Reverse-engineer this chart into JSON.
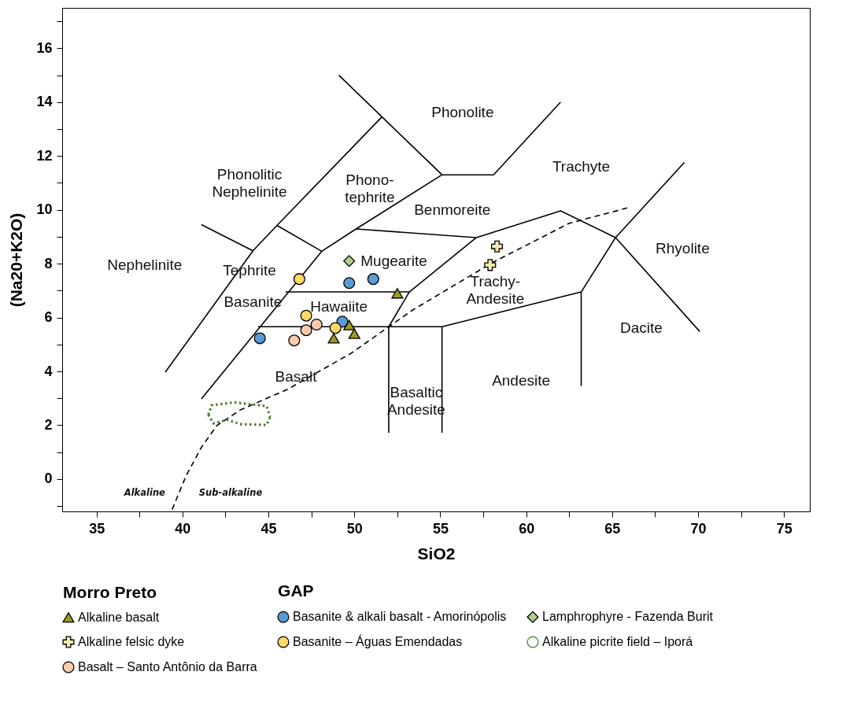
{
  "chart_data": {
    "type": "scatter",
    "xlabel": "SiO2",
    "ylabel": "(Na20+K2O)",
    "xlim": [
      33,
      76.5
    ],
    "ylim": [
      -1.2,
      17.5
    ],
    "xticks": [
      35,
      {
        "value": 37.5,
        "label": null
      },
      40,
      {
        "value": 42.5,
        "label": null
      },
      45,
      {
        "value": 47.5,
        "label": null
      },
      50,
      {
        "value": 52.5,
        "label": null
      },
      55,
      {
        "value": 57.5,
        "label": null
      },
      60,
      {
        "value": 62.5,
        "label": null
      },
      65,
      {
        "value": 67.5,
        "label": null
      },
      70,
      {
        "value": 72.5,
        "label": null
      },
      75
    ],
    "yticks": [
      {
        "value": -1,
        "label": null
      },
      0,
      {
        "value": 1,
        "label": null
      },
      2,
      {
        "value": 3,
        "label": null
      },
      4,
      {
        "value": 5,
        "label": null
      },
      6,
      {
        "value": 7,
        "label": null
      },
      8,
      {
        "value": 9,
        "label": null
      },
      10,
      {
        "value": 11,
        "label": null
      },
      12,
      {
        "value": 13,
        "label": null
      },
      14,
      {
        "value": 15,
        "label": null
      },
      16,
      {
        "value": 17,
        "label": null
      }
    ],
    "legend": "bottom",
    "annotations": [
      "Morro Preto",
      "GAP",
      "Phonolite",
      "Trachyte",
      "Phonolitic\nNephelinite",
      "Phono-\ntephrite",
      "Benmoreite",
      "Nephelinite",
      "Mugearite",
      "Rhyolite",
      "Tephrite",
      "Trachy-\nAndesite",
      "Basanite",
      "Hawaiite",
      "Dacite",
      "Basalt",
      "Basaltic\nAndesite",
      "Andesite",
      "Alkaline",
      "Sub-alkaline"
    ],
    "series": [
      {
        "type": "line",
        "color": "#000000",
        "x": [
          39.0,
          44.1,
          45.5,
          51.6,
          null,
          41.1,
          44.1,
          null,
          41.1,
          48.1,
          50.1,
          55.1,
          58.1,
          62.0,
          null,
          45.5,
          48.1,
          null,
          49.1,
          55.1,
          null,
          50.1,
          57.1,
          62.0,
          65.2,
          69.2,
          null,
          57.1,
          53.2,
          52.0,
          52.0,
          null,
          46.0,
          53.2,
          null,
          44.4,
          55.1,
          null,
          55.1,
          55.1,
          null,
          55.1,
          63.2,
          65.2,
          70.1,
          null,
          63.2,
          63.2
        ],
        "values": [
          3.97,
          8.48,
          9.42,
          13.45,
          null,
          9.45,
          8.48,
          null,
          2.98,
          8.46,
          9.29,
          11.3,
          11.3,
          14.0,
          null,
          9.42,
          8.46,
          null,
          15.0,
          11.3,
          null,
          9.29,
          8.97,
          9.96,
          8.97,
          11.76,
          null,
          8.97,
          6.95,
          5.66,
          1.72,
          null,
          6.95,
          6.95,
          null,
          5.66,
          5.66,
          null,
          5.66,
          1.72,
          null,
          5.66,
          6.95,
          8.97,
          5.48,
          null,
          6.95,
          3.46
        ]
      },
      {
        "type": "line",
        "color": "#000000",
        "line_style": "dashed",
        "x": [
          39.4,
          40.2,
          41.1,
          42.0,
          43.4,
          46.1,
          49.8,
          53.4,
          58.0,
          62.5,
          66.0
        ],
        "values": [
          -1.13,
          0.11,
          1.18,
          1.99,
          2.58,
          3.33,
          4.67,
          6.28,
          8.03,
          9.5,
          10.09
        ]
      },
      {
        "name": "Alkaline basalt",
        "marker": "triangle",
        "color": "#9c9a20",
        "x": [
          52.5,
          49.7,
          50.0,
          48.8
        ],
        "values": [
          6.9,
          5.72,
          5.4,
          5.23
        ]
      },
      {
        "name": "Basanite & alkali basalt - Amorinópolis",
        "marker": "circle",
        "color": "#5b9bd5",
        "x": [
          44.5,
          49.7,
          51.1,
          49.3
        ],
        "values": [
          5.23,
          7.28,
          7.43,
          5.85
        ]
      },
      {
        "name": "Lamphrophyre - Fazenda Burit",
        "marker": "diamond",
        "color": "#a9d18e",
        "x": [
          49.7
        ],
        "values": [
          8.1
        ]
      },
      {
        "name": "Alkaline felsic dyke",
        "marker": "cross",
        "color": "#f3eab0",
        "x": [
          58.3,
          57.9
        ],
        "values": [
          8.64,
          7.95
        ]
      },
      {
        "name": "Basanite – Águas Emendadas",
        "marker": "circle",
        "color": "#ffd966",
        "x": [
          46.8,
          47.2,
          48.9
        ],
        "values": [
          7.43,
          6.07,
          5.61
        ]
      },
      {
        "name": "Alkaline picrite field – Iporá",
        "type": "line",
        "line_style": "dotted",
        "color": "#4e7a32",
        "x": [
          41.5,
          41.7,
          43.0,
          44.9,
          45.1
        ],
        "values": [
          2.39,
          2.74,
          2.85,
          2.71,
          2.31
        ]
      },
      {
        "type": "line",
        "line_style": "dotted",
        "color": "#4e7a32",
        "x": [
          41.5,
          41.8,
          42.6,
          43.4,
          44.9,
          45.1
        ],
        "values": [
          2.39,
          2.07,
          2.2,
          2.04,
          2.01,
          2.31
        ]
      },
      {
        "name": "Basalt – Santo Antônio da Barra",
        "marker": "circle",
        "color": "#f8cbad",
        "x": [
          46.5,
          47.2,
          47.8
        ],
        "values": [
          5.15,
          5.53,
          5.74
        ]
      }
    ]
  }
}
